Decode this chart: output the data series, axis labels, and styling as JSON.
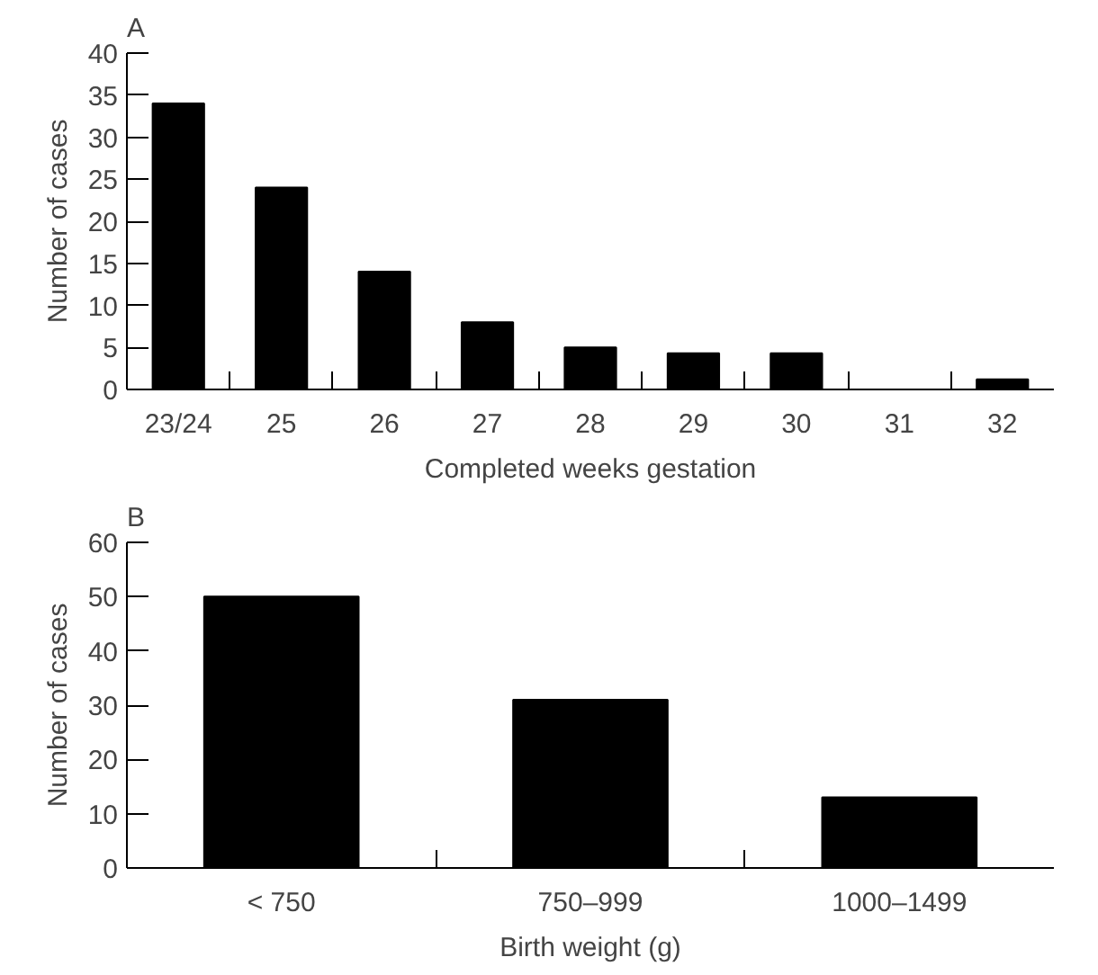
{
  "chart_data": [
    {
      "type": "bar",
      "title": "A",
      "xlabel": "Completed weeks gestation",
      "ylabel": "Number of cases",
      "categories": [
        "23/24",
        "25",
        "26",
        "27",
        "28",
        "29",
        "30",
        "31",
        "32"
      ],
      "series": [
        {
          "color": "#000000",
          "values": [
            34,
            24,
            14,
            8,
            5,
            4.3,
            4.3,
            0,
            1.2
          ]
        }
      ],
      "ylim": [
        0,
        40
      ],
      "yticks": [
        0,
        5,
        10,
        15,
        20,
        25,
        30,
        35,
        40
      ],
      "grid": false
    },
    {
      "type": "bar",
      "title": "B",
      "xlabel": "Birth weight (g)",
      "ylabel": "Number of cases",
      "categories": [
        "< 750",
        "750–999",
        "1000–1499"
      ],
      "series": [
        {
          "color": "#000000",
          "values": [
            50,
            31,
            13
          ]
        }
      ],
      "ylim": [
        0,
        60
      ],
      "yticks": [
        0,
        10,
        20,
        30,
        40,
        50,
        60
      ],
      "grid": false
    }
  ]
}
